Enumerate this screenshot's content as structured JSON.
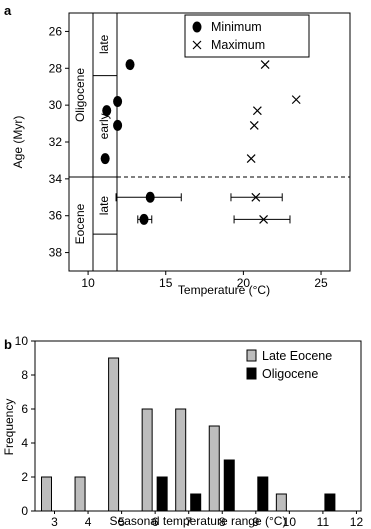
{
  "panels": {
    "a": "a",
    "b": "b"
  },
  "chart_data": [
    {
      "type": "scatter",
      "panel": "a",
      "title": "",
      "xlabel": "Temperature (°C)",
      "ylabel": "Age (Myr)",
      "xlim": [
        7,
        25
      ],
      "ylim": [
        39,
        25
      ],
      "x_inverted": false,
      "y_inverted": true,
      "xticks": [
        "10",
        "15",
        "20",
        "25"
      ],
      "xtick_values": [
        10,
        15,
        20,
        25
      ],
      "yticks": [
        "26",
        "28",
        "30",
        "32",
        "34",
        "36",
        "38"
      ],
      "ytick_values": [
        26,
        28,
        30,
        32,
        34,
        36,
        38
      ],
      "boundary_age": 33.9,
      "stratigraphy": {
        "epochs": [
          {
            "name": "Oligocene",
            "from": 25,
            "to": 33.9
          },
          {
            "name": "Eocene",
            "from": 33.9,
            "to": 39
          }
        ],
        "subdivisions": [
          {
            "name": "late",
            "from": 25,
            "to": 28.4
          },
          {
            "name": "early",
            "from": 28.4,
            "to": 33.9
          },
          {
            "name": "late",
            "from": 33.9,
            "to": 37
          }
        ]
      },
      "legend": {
        "position": "top-right",
        "entries": [
          "Minimum",
          "Maximum"
        ]
      },
      "series": [
        {
          "name": "Minimum",
          "marker": "filled-circle",
          "points": [
            {
              "x": 12.7,
              "y": 27.8
            },
            {
              "x": 11.9,
              "y": 29.8
            },
            {
              "x": 11.2,
              "y": 30.3
            },
            {
              "x": 11.9,
              "y": 31.1
            },
            {
              "x": 11.1,
              "y": 32.9
            },
            {
              "x": 14.0,
              "y": 35.0,
              "xerr": [
                11.8,
                16.0
              ]
            },
            {
              "x": 13.6,
              "y": 36.2,
              "xerr": [
                13.2,
                14.1
              ]
            }
          ]
        },
        {
          "name": "Maximum",
          "marker": "x",
          "points": [
            {
              "x": 21.4,
              "y": 27.8
            },
            {
              "x": 23.4,
              "y": 29.7
            },
            {
              "x": 20.9,
              "y": 30.3
            },
            {
              "x": 20.7,
              "y": 31.1
            },
            {
              "x": 20.5,
              "y": 32.9
            },
            {
              "x": 20.8,
              "y": 35.0,
              "xerr": [
                19.2,
                22.5
              ]
            },
            {
              "x": 21.3,
              "y": 36.2,
              "xerr": [
                19.4,
                23.0
              ]
            }
          ]
        }
      ]
    },
    {
      "type": "bar",
      "panel": "b",
      "title": "",
      "xlabel": "Seasonal temperature range (°C)",
      "ylabel": "Frequency",
      "ylim": [
        0,
        10
      ],
      "yticks": [
        "0",
        "2",
        "4",
        "6",
        "8",
        "10"
      ],
      "ytick_values": [
        0,
        2,
        4,
        6,
        8,
        10
      ],
      "categories": [
        "3",
        "4",
        "5",
        "6",
        "7",
        "8",
        "9",
        "10",
        "11",
        "12"
      ],
      "legend": {
        "position": "top-right",
        "entries": [
          "Late Eocene",
          "Oligocene"
        ]
      },
      "series": [
        {
          "name": "Late Eocene",
          "color": "#bdbdbd",
          "values": [
            2,
            2,
            9,
            6,
            6,
            5,
            0,
            1,
            0,
            0
          ]
        },
        {
          "name": "Oligocene",
          "color": "#000000",
          "values": [
            0,
            0,
            0,
            2,
            1,
            3,
            2,
            0,
            1,
            0
          ]
        }
      ]
    }
  ]
}
